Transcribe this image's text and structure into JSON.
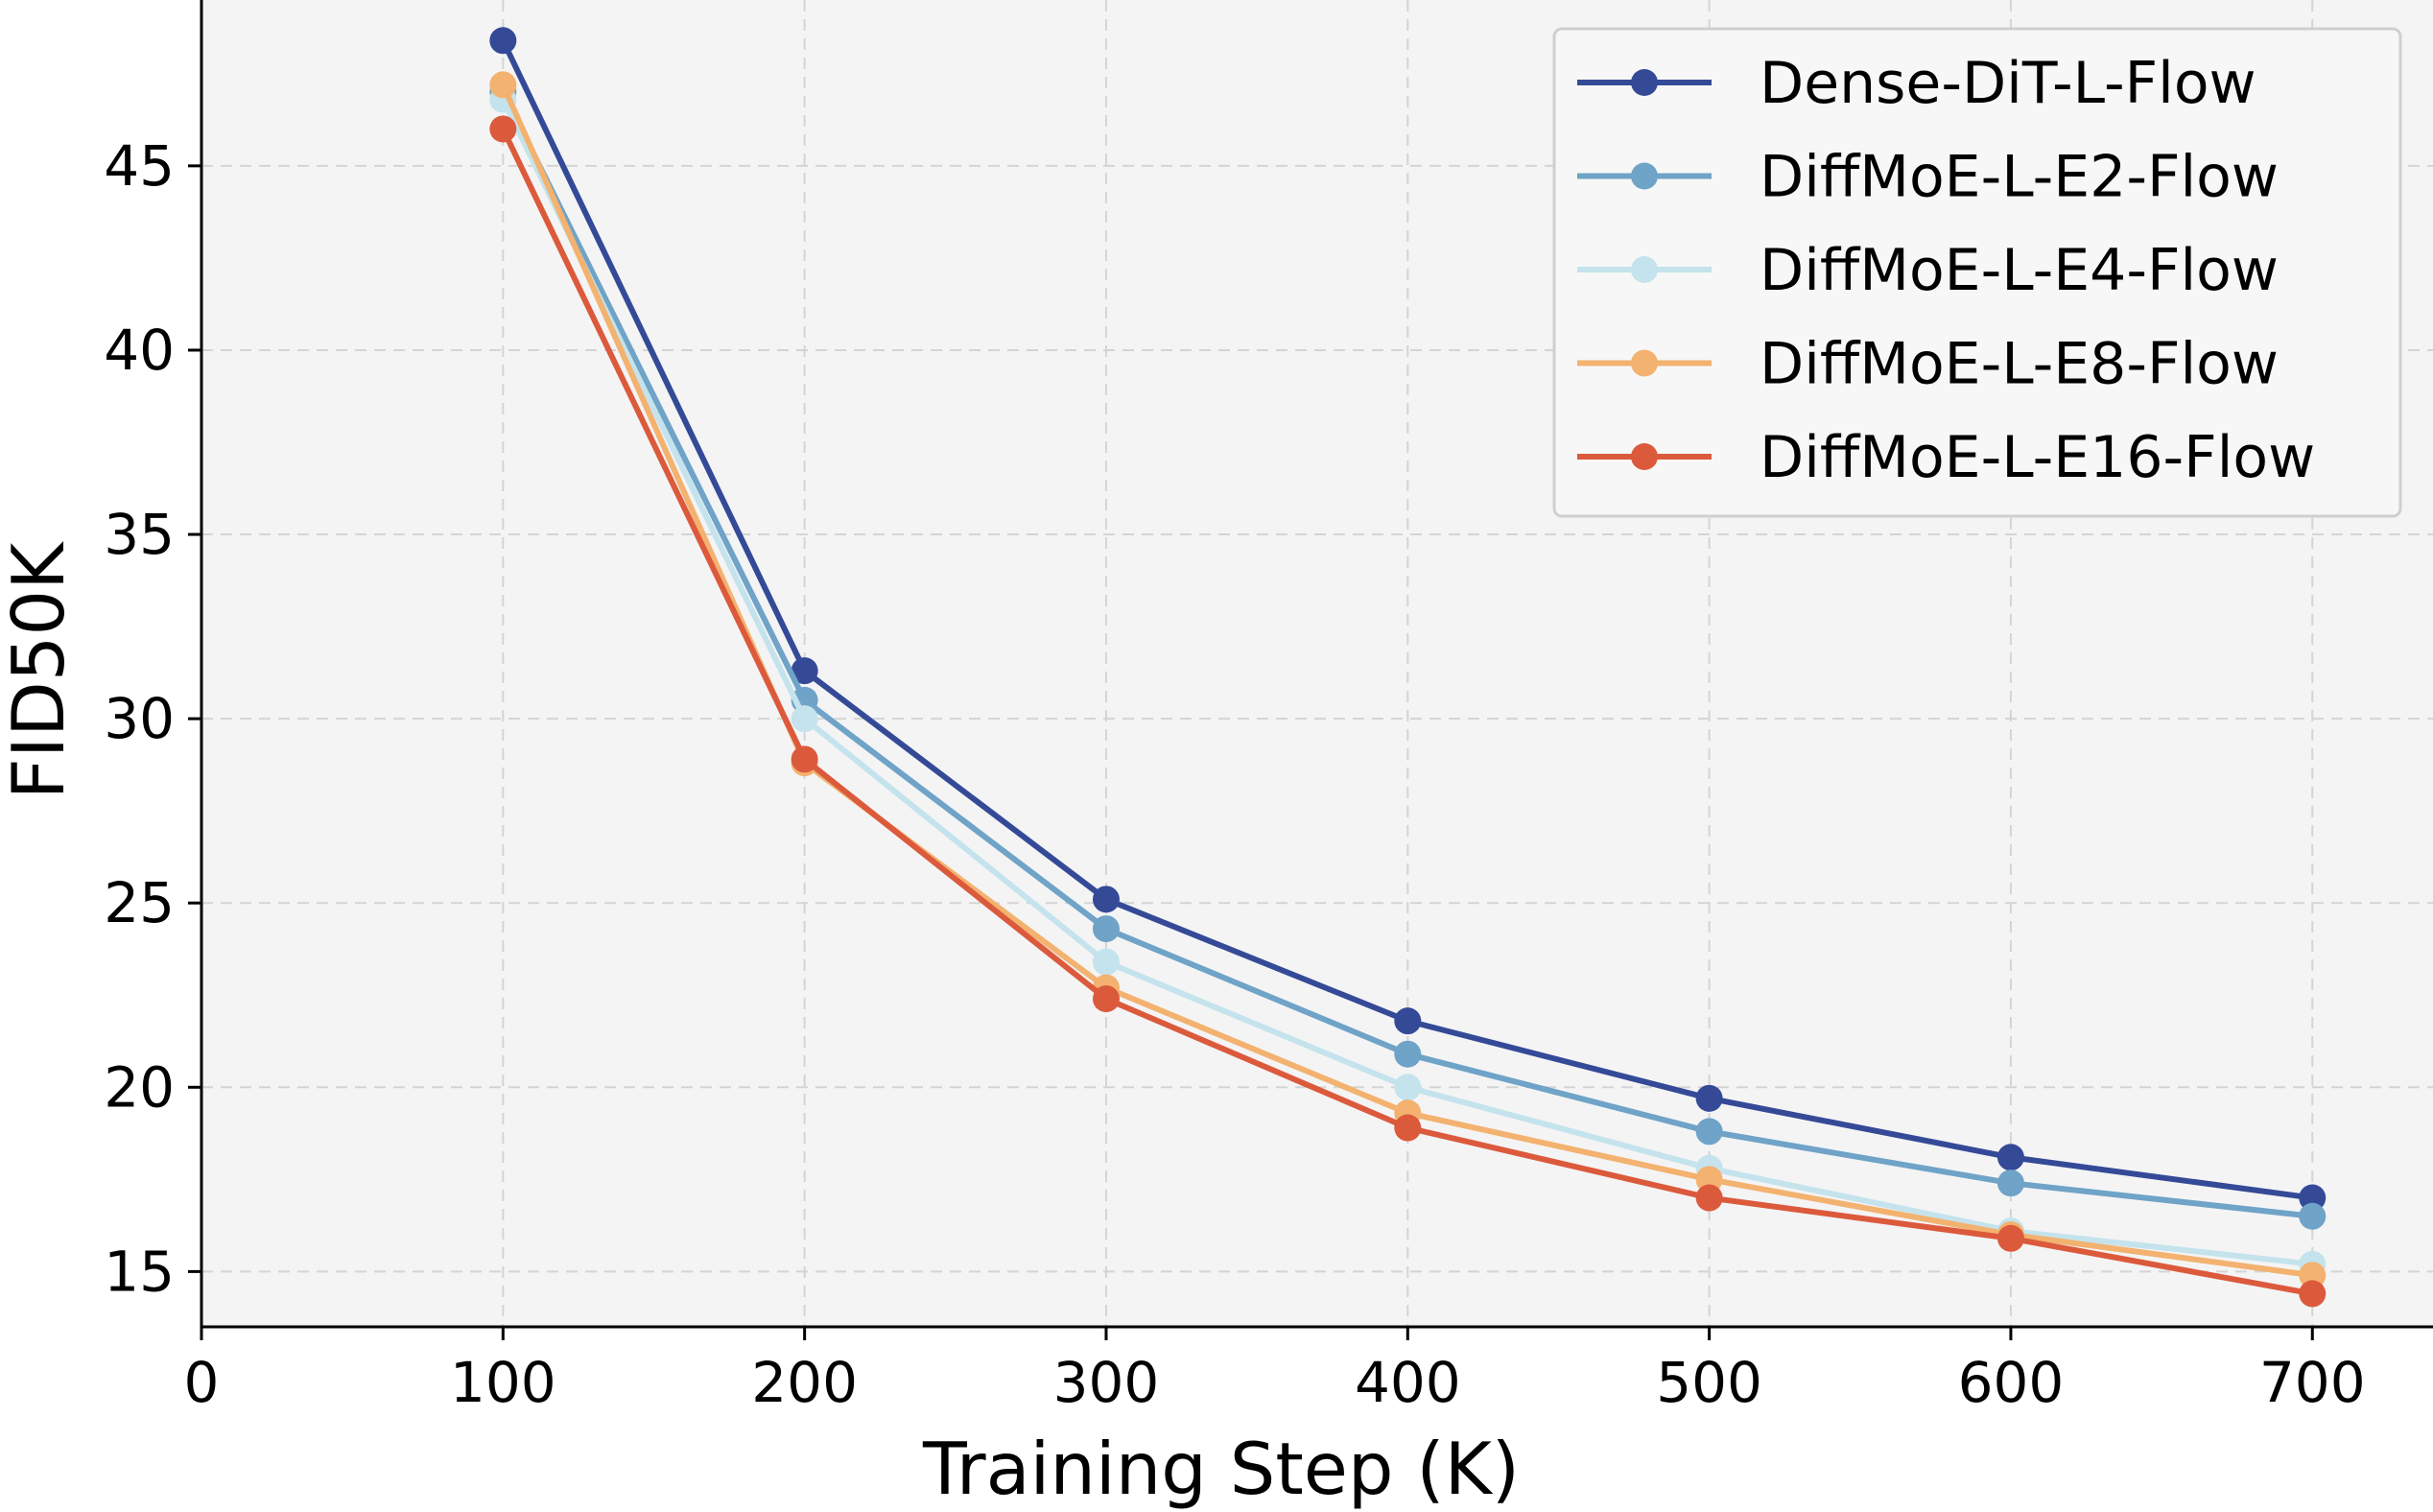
{
  "chart_data": {
    "type": "line",
    "title": "",
    "xlabel": "Training Step (K)",
    "ylabel": "FID50K",
    "x": [
      100,
      200,
      300,
      400,
      500,
      600,
      700
    ],
    "xticks": [
      0,
      100,
      200,
      300,
      400,
      500,
      600,
      700
    ],
    "yticks": [
      15,
      20,
      25,
      30,
      35,
      40,
      45
    ],
    "xlim": [
      0,
      740
    ],
    "ylim": [
      13.5,
      49.5
    ],
    "grid": true,
    "legend_position": "top-right",
    "background": "#f4f4f5",
    "series": [
      {
        "name": "Dense-DiT-L-Flow",
        "color": "#354a97",
        "values": [
          48.4,
          31.3,
          25.1,
          21.8,
          19.7,
          18.1,
          17.0
        ]
      },
      {
        "name": "DiffMoE-L-E2-Flow",
        "color": "#6fa3c7",
        "values": [
          47.0,
          30.5,
          24.3,
          20.9,
          18.8,
          17.4,
          16.5
        ]
      },
      {
        "name": "DiffMoE-L-E4-Flow",
        "color": "#c4e3ec",
        "values": [
          46.8,
          30.0,
          23.4,
          20.0,
          17.8,
          16.1,
          15.2
        ]
      },
      {
        "name": "DiffMoE-L-E8-Flow",
        "color": "#f3b26f",
        "values": [
          47.2,
          28.8,
          22.7,
          19.3,
          17.5,
          16.0,
          14.9
        ]
      },
      {
        "name": "DiffMoE-L-E16-Flow",
        "color": "#dc5a3c",
        "values": [
          46.0,
          28.9,
          22.4,
          18.9,
          17.0,
          15.9,
          14.4
        ]
      }
    ]
  }
}
